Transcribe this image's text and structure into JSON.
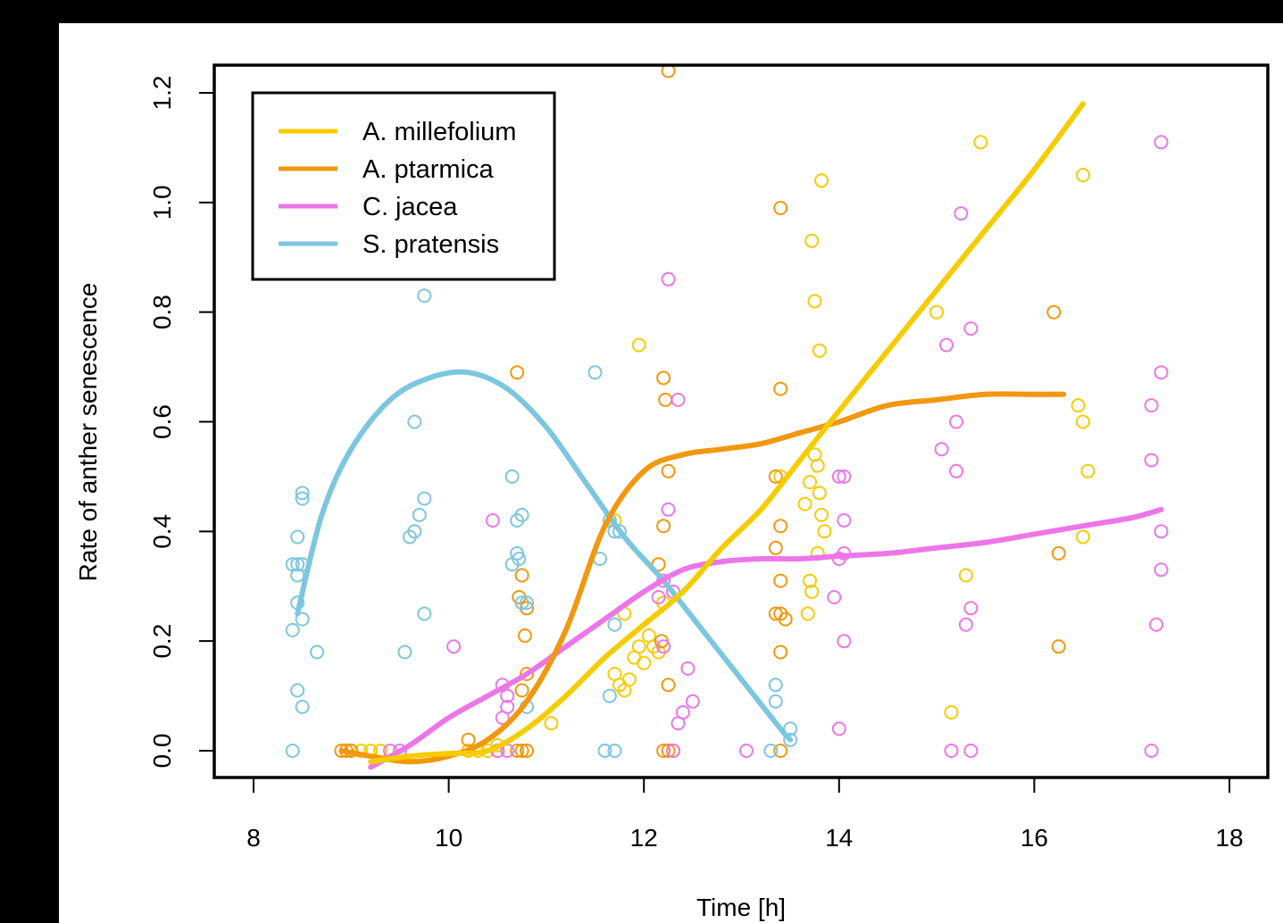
{
  "chart_data": {
    "type": "scatter",
    "title": "",
    "xlabel": "Time [h]",
    "ylabel": "Rate of anther senescence",
    "xlim": [
      8,
      18
    ],
    "ylim": [
      0,
      1.2
    ],
    "xticks": [
      "8",
      "10",
      "12",
      "14",
      "16",
      "18"
    ],
    "yticks": [
      "0.0",
      "0.2",
      "0.4",
      "0.6",
      "0.8",
      "1.0",
      "1.2"
    ],
    "grid": false,
    "legend_position": "top-left",
    "colors": {
      "A. millefolium": "#f5cc00",
      "A. ptarmica": "#f2970f",
      "C. jacea": "#ec76e8",
      "S. pratensis": "#7cc6df"
    },
    "series": [
      {
        "name": "A. millefolium",
        "points": [
          [
            9.0,
            0
          ],
          [
            9.1,
            0
          ],
          [
            9.2,
            0
          ],
          [
            9.3,
            0
          ],
          [
            10.2,
            0
          ],
          [
            10.3,
            0
          ],
          [
            10.4,
            0
          ],
          [
            10.5,
            0.01
          ],
          [
            10.8,
            0
          ],
          [
            11.05,
            0.05
          ],
          [
            11.7,
            0.42
          ],
          [
            11.8,
            0.25
          ],
          [
            11.7,
            0.14
          ],
          [
            11.75,
            0.12
          ],
          [
            11.8,
            0.11
          ],
          [
            11.85,
            0.13
          ],
          [
            11.9,
            0.17
          ],
          [
            11.95,
            0.19
          ],
          [
            12.0,
            0.16
          ],
          [
            12.05,
            0.21
          ],
          [
            12.1,
            0.19
          ],
          [
            12.15,
            0.18
          ],
          [
            12.2,
            0.27
          ],
          [
            11.95,
            0.74
          ],
          [
            13.4,
            0.5
          ],
          [
            13.65,
            0.45
          ],
          [
            13.7,
            0.49
          ],
          [
            13.72,
            0.93
          ],
          [
            13.75,
            0.82
          ],
          [
            13.8,
            0.73
          ],
          [
            13.82,
            1.04
          ],
          [
            13.75,
            0.54
          ],
          [
            13.78,
            0.52
          ],
          [
            13.8,
            0.47
          ],
          [
            13.82,
            0.43
          ],
          [
            13.85,
            0.4
          ],
          [
            13.78,
            0.36
          ],
          [
            13.7,
            0.31
          ],
          [
            13.72,
            0.29
          ],
          [
            13.68,
            0.25
          ],
          [
            15.0,
            0.8
          ],
          [
            15.15,
            0.07
          ],
          [
            15.3,
            0.32
          ],
          [
            15.45,
            1.11
          ],
          [
            16.5,
            1.05
          ],
          [
            16.45,
            0.63
          ],
          [
            16.5,
            0.6
          ],
          [
            16.55,
            0.51
          ],
          [
            16.5,
            0.39
          ]
        ],
        "curve": [
          [
            9.2,
            -0.02
          ],
          [
            9.6,
            -0.01
          ],
          [
            10.0,
            -0.005
          ],
          [
            10.4,
            0.0
          ],
          [
            10.8,
            0.04
          ],
          [
            11.2,
            0.1
          ],
          [
            11.6,
            0.17
          ],
          [
            12.0,
            0.23
          ],
          [
            12.4,
            0.29
          ],
          [
            12.8,
            0.37
          ],
          [
            13.2,
            0.44
          ],
          [
            13.6,
            0.53
          ],
          [
            14.0,
            0.62
          ],
          [
            14.5,
            0.73
          ],
          [
            15.0,
            0.84
          ],
          [
            15.5,
            0.95
          ],
          [
            16.0,
            1.06
          ],
          [
            16.5,
            1.18
          ]
        ]
      },
      {
        "name": "A. ptarmica",
        "points": [
          [
            8.9,
            0
          ],
          [
            8.95,
            0
          ],
          [
            9.0,
            0
          ],
          [
            10.2,
            0.02
          ],
          [
            10.5,
            0
          ],
          [
            10.7,
            0
          ],
          [
            10.75,
            0
          ],
          [
            10.8,
            0
          ],
          [
            10.7,
            0.69
          ],
          [
            10.75,
            0.32
          ],
          [
            10.72,
            0.28
          ],
          [
            10.8,
            0.26
          ],
          [
            10.78,
            0.21
          ],
          [
            10.8,
            0.14
          ],
          [
            10.75,
            0.11
          ],
          [
            12.2,
            0.68
          ],
          [
            12.22,
            0.64
          ],
          [
            12.25,
            0.51
          ],
          [
            12.2,
            0.41
          ],
          [
            12.15,
            0.34
          ],
          [
            12.18,
            0.2
          ],
          [
            12.25,
            0.12
          ],
          [
            12.2,
            0
          ],
          [
            12.25,
            0
          ],
          [
            12.3,
            0
          ],
          [
            12.25,
            1.24
          ],
          [
            13.4,
            0.99
          ],
          [
            13.4,
            0.66
          ],
          [
            13.35,
            0.5
          ],
          [
            13.4,
            0.41
          ],
          [
            13.35,
            0.37
          ],
          [
            13.4,
            0.31
          ],
          [
            13.35,
            0.25
          ],
          [
            13.4,
            0.25
          ],
          [
            13.45,
            0.24
          ],
          [
            13.4,
            0.18
          ],
          [
            13.4,
            0
          ],
          [
            16.2,
            0.8
          ],
          [
            16.25,
            0.36
          ],
          [
            16.25,
            0.19
          ]
        ],
        "curve": [
          [
            8.9,
            0.0
          ],
          [
            9.2,
            -0.01
          ],
          [
            9.6,
            -0.02
          ],
          [
            10.0,
            -0.01
          ],
          [
            10.4,
            0.02
          ],
          [
            10.8,
            0.09
          ],
          [
            11.2,
            0.22
          ],
          [
            11.6,
            0.41
          ],
          [
            12.0,
            0.51
          ],
          [
            12.4,
            0.54
          ],
          [
            12.8,
            0.55
          ],
          [
            13.2,
            0.56
          ],
          [
            13.6,
            0.58
          ],
          [
            14.0,
            0.6
          ],
          [
            14.5,
            0.63
          ],
          [
            15.0,
            0.64
          ],
          [
            15.5,
            0.65
          ],
          [
            16.0,
            0.65
          ],
          [
            16.3,
            0.65
          ]
        ]
      },
      {
        "name": "C. jacea",
        "points": [
          [
            9.4,
            0
          ],
          [
            9.5,
            0
          ],
          [
            10.05,
            0.19
          ],
          [
            10.45,
            0.42
          ],
          [
            10.55,
            0.12
          ],
          [
            10.6,
            0.1
          ],
          [
            10.6,
            0.08
          ],
          [
            10.55,
            0.06
          ],
          [
            10.6,
            0
          ],
          [
            10.5,
            0
          ],
          [
            12.25,
            0.86
          ],
          [
            12.35,
            0.64
          ],
          [
            12.25,
            0.44
          ],
          [
            12.2,
            0.31
          ],
          [
            12.15,
            0.28
          ],
          [
            12.3,
            0.29
          ],
          [
            12.2,
            0.19
          ],
          [
            12.45,
            0.15
          ],
          [
            12.5,
            0.09
          ],
          [
            12.4,
            0.07
          ],
          [
            12.35,
            0.05
          ],
          [
            12.3,
            0
          ],
          [
            13.05,
            0
          ],
          [
            14.0,
            0.5
          ],
          [
            14.05,
            0.5
          ],
          [
            14.05,
            0.42
          ],
          [
            14.05,
            0.36
          ],
          [
            14.0,
            0.35
          ],
          [
            13.95,
            0.28
          ],
          [
            14.05,
            0.2
          ],
          [
            14.0,
            0.04
          ],
          [
            15.1,
            0.74
          ],
          [
            15.2,
            0.6
          ],
          [
            15.05,
            0.55
          ],
          [
            15.2,
            0.51
          ],
          [
            15.25,
            0.98
          ],
          [
            15.35,
            0.77
          ],
          [
            15.35,
            0.26
          ],
          [
            15.3,
            0.23
          ],
          [
            15.15,
            0
          ],
          [
            15.35,
            0
          ],
          [
            17.3,
            1.11
          ],
          [
            17.3,
            0.69
          ],
          [
            17.2,
            0.63
          ],
          [
            17.2,
            0.53
          ],
          [
            17.3,
            0.4
          ],
          [
            17.3,
            0.33
          ],
          [
            17.25,
            0.23
          ],
          [
            17.2,
            0
          ]
        ],
        "curve": [
          [
            9.2,
            -0.03
          ],
          [
            9.6,
            0.01
          ],
          [
            10.0,
            0.06
          ],
          [
            10.4,
            0.1
          ],
          [
            10.8,
            0.14
          ],
          [
            11.2,
            0.19
          ],
          [
            11.6,
            0.24
          ],
          [
            12.0,
            0.29
          ],
          [
            12.4,
            0.33
          ],
          [
            12.8,
            0.345
          ],
          [
            13.2,
            0.35
          ],
          [
            13.6,
            0.35
          ],
          [
            14.0,
            0.355
          ],
          [
            14.5,
            0.36
          ],
          [
            15.0,
            0.37
          ],
          [
            15.5,
            0.38
          ],
          [
            16.0,
            0.395
          ],
          [
            16.5,
            0.41
          ],
          [
            17.0,
            0.425
          ],
          [
            17.3,
            0.44
          ]
        ]
      },
      {
        "name": "S. pratensis",
        "points": [
          [
            8.4,
            0.22
          ],
          [
            8.45,
            0.27
          ],
          [
            8.5,
            0.24
          ],
          [
            8.45,
            0.32
          ],
          [
            8.4,
            0.34
          ],
          [
            8.45,
            0.34
          ],
          [
            8.5,
            0.34
          ],
          [
            8.45,
            0.39
          ],
          [
            8.5,
            0.46
          ],
          [
            8.5,
            0.47
          ],
          [
            8.45,
            0.11
          ],
          [
            8.5,
            0.08
          ],
          [
            8.4,
            0
          ],
          [
            8.65,
            0.18
          ],
          [
            9.55,
            0.18
          ],
          [
            9.6,
            0.39
          ],
          [
            9.65,
            0.4
          ],
          [
            9.7,
            0.43
          ],
          [
            9.75,
            0.46
          ],
          [
            9.65,
            0.6
          ],
          [
            9.75,
            0.83
          ],
          [
            9.75,
            0.25
          ],
          [
            10.65,
            0.5
          ],
          [
            10.7,
            0.42
          ],
          [
            10.75,
            0.43
          ],
          [
            10.7,
            0.36
          ],
          [
            10.72,
            0.35
          ],
          [
            10.65,
            0.34
          ],
          [
            10.75,
            0.27
          ],
          [
            10.8,
            0.27
          ],
          [
            10.8,
            0.08
          ],
          [
            11.5,
            0.69
          ],
          [
            11.55,
            0.35
          ],
          [
            11.65,
            0.42
          ],
          [
            11.7,
            0.4
          ],
          [
            11.75,
            0.4
          ],
          [
            11.7,
            0.23
          ],
          [
            11.65,
            0.1
          ],
          [
            11.6,
            0
          ],
          [
            11.7,
            0
          ],
          [
            13.3,
            0
          ],
          [
            13.35,
            0.12
          ],
          [
            13.35,
            0.09
          ],
          [
            13.5,
            0.04
          ],
          [
            13.5,
            0.02
          ]
        ],
        "curve": [
          [
            8.45,
            0.25
          ],
          [
            8.7,
            0.43
          ],
          [
            9.0,
            0.55
          ],
          [
            9.4,
            0.64
          ],
          [
            9.8,
            0.68
          ],
          [
            10.2,
            0.69
          ],
          [
            10.6,
            0.66
          ],
          [
            11.0,
            0.59
          ],
          [
            11.4,
            0.49
          ],
          [
            11.8,
            0.39
          ],
          [
            12.2,
            0.31
          ],
          [
            12.6,
            0.22
          ],
          [
            13.0,
            0.13
          ],
          [
            13.4,
            0.04
          ],
          [
            13.5,
            0.02
          ]
        ]
      }
    ]
  }
}
